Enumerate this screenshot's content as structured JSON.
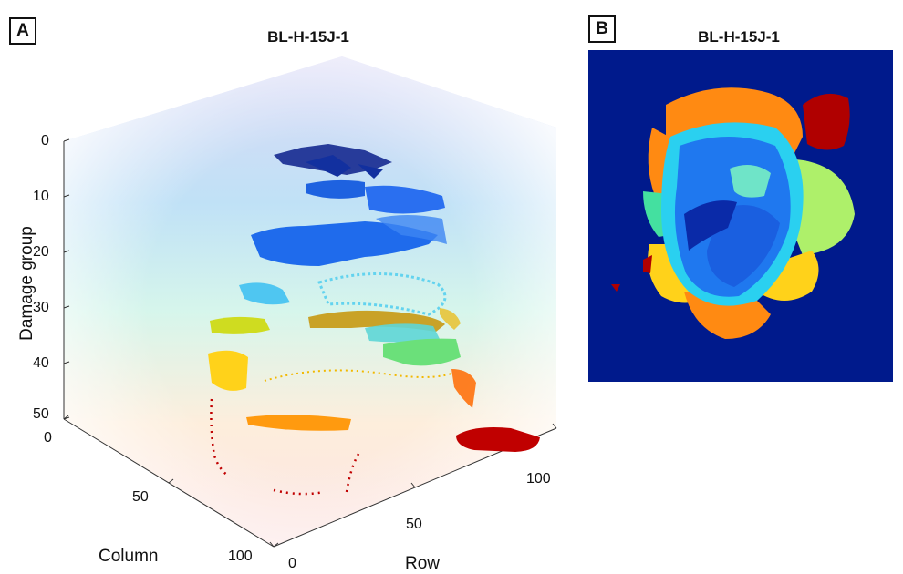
{
  "panels": [
    {
      "badge": "A",
      "title": "BL-H-15J-1"
    },
    {
      "badge": "B",
      "title": "BL-H-15J-1"
    }
  ],
  "chart_data": [
    {
      "type": "scatter",
      "title": "BL-H-15J-1",
      "zlabel": "Damage group",
      "xlabel": "Row",
      "ylabel": "Column",
      "zlim": [
        0,
        50
      ],
      "z_reversed": true,
      "z_ticks": [
        "0",
        "10",
        "20",
        "30",
        "40",
        "50"
      ],
      "row_ticks": [
        "0",
        "50",
        "100"
      ],
      "column_ticks": [
        "0",
        "50",
        "100"
      ],
      "colormap": "jet",
      "background_gradient": [
        "#c9c6f0",
        "#a9d8f3",
        "#c2f0e6",
        "#fde9d2",
        "#fbd6d6"
      ],
      "clusters": [
        {
          "group": 1,
          "color": "#0a1f8a"
        },
        {
          "group": 8,
          "color": "#1e62e0"
        },
        {
          "group": 17,
          "color": "#1f6bec"
        },
        {
          "group": 28,
          "color": "#4fc6f1"
        },
        {
          "group": 33,
          "color": "#cfdc20"
        },
        {
          "group": 33,
          "color": "#c9a227"
        },
        {
          "group": 35,
          "color": "#5ed6d6"
        },
        {
          "group": 38,
          "color": "#6be07a"
        },
        {
          "group": 41,
          "color": "#ffd21a"
        },
        {
          "group": 46,
          "color": "#ff9a0f"
        },
        {
          "group": 49,
          "color": "#c00000"
        }
      ]
    },
    {
      "type": "heatmap",
      "title": "BL-H-15J-1",
      "colormap": "jet",
      "background_color": "#001a8c"
    }
  ]
}
